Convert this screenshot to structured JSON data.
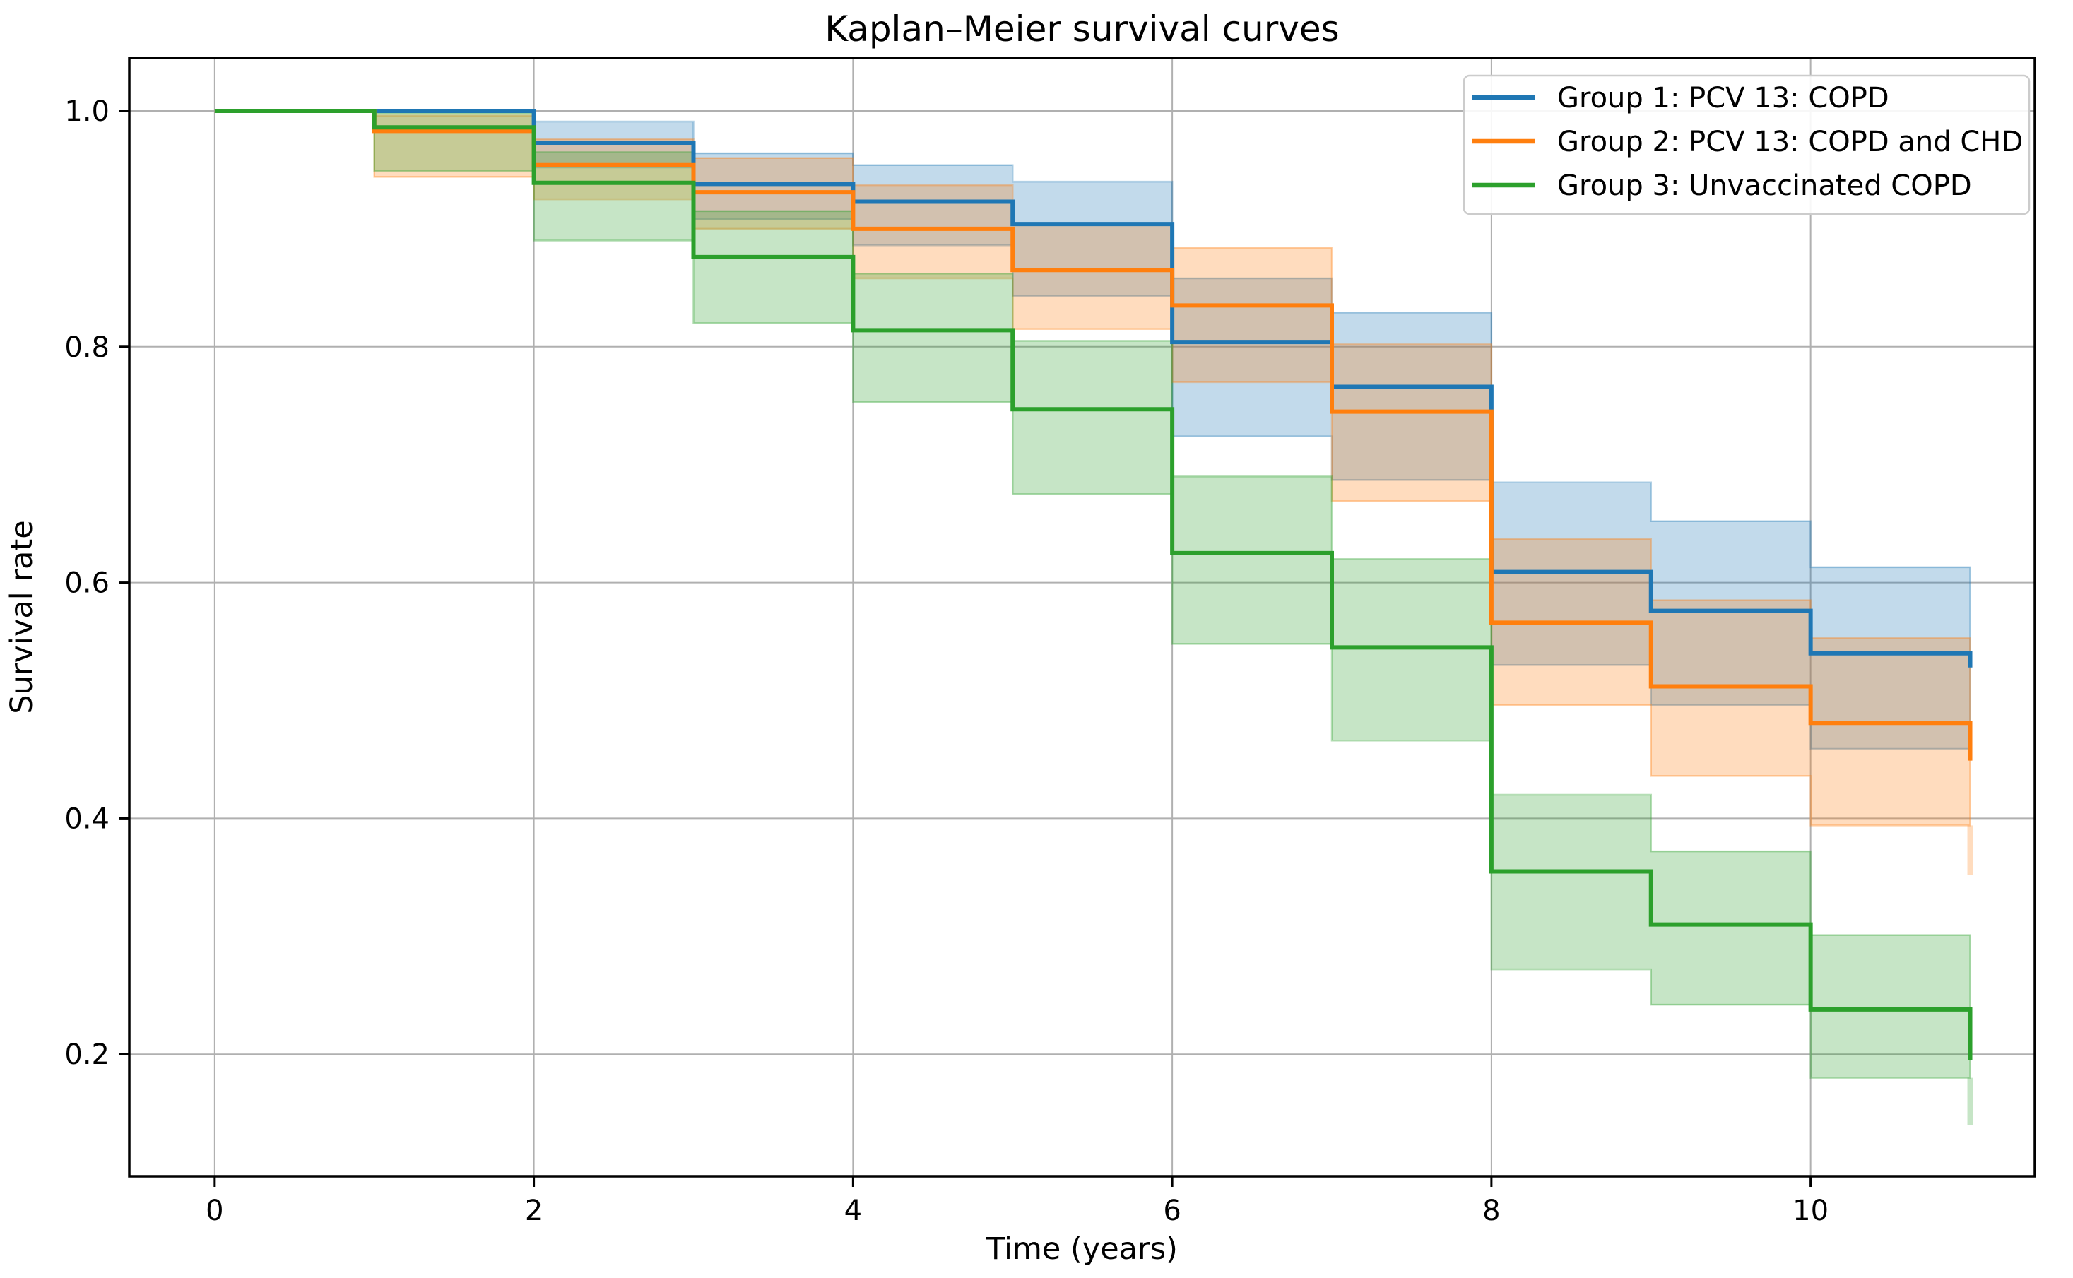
{
  "figure": {
    "title": "Kaplan–Meier survival curves"
  },
  "chart_data": {
    "type": "line",
    "variant": "kaplan_meier_step",
    "title": "Kaplan–Meier survival curves",
    "xlabel": "Time (years)",
    "ylabel": "Survival rate",
    "x_ticks": [
      0,
      2,
      4,
      6,
      8,
      10
    ],
    "y_ticks": [
      0.2,
      0.4,
      0.6,
      0.8,
      1.0
    ],
    "xlim": [
      -0.535,
      11.405
    ],
    "ylim": [
      0.0965,
      1.0449
    ],
    "grid": true,
    "grid_color": "#b0b0b0",
    "axis_color": "#000000",
    "text_color": "#000000",
    "background_color": "#ffffff",
    "legend": {
      "position": "upper right",
      "border_color": "#cccccc",
      "entries": [
        "Group 1: PCV 13: COPD",
        "Group 2: PCV 13: COPD and CHD",
        "Group 3: Unvaccinated COPD"
      ]
    },
    "years": [
      0,
      1,
      2,
      3,
      4,
      5,
      6,
      7,
      8,
      9,
      10,
      11
    ],
    "series": [
      {
        "name": "Group 1: PCV 13: COPD",
        "color": "#1f77b4",
        "band_alpha": 0.27,
        "survival": [
          1.0,
          1.0,
          0.973,
          0.938,
          0.923,
          0.904,
          0.804,
          0.766,
          0.609,
          0.576,
          0.54
        ],
        "final": 0.528,
        "ci_lower": [
          null,
          null,
          0.952,
          0.908,
          0.886,
          0.843,
          0.724,
          0.687,
          0.53,
          0.496,
          0.459
        ],
        "ci_upper": [
          null,
          null,
          0.991,
          0.964,
          0.954,
          0.94,
          0.858,
          0.829,
          0.685,
          0.652,
          0.613
        ],
        "ci_tail_lower": null
      },
      {
        "name": "Group 2: PCV 13: COPD and CHD",
        "color": "#ff7f0e",
        "band_alpha": 0.27,
        "survival": [
          1.0,
          0.983,
          0.954,
          0.931,
          0.9,
          0.865,
          0.835,
          0.745,
          0.566,
          0.512,
          0.481
        ],
        "final": 0.449,
        "ci_lower": [
          null,
          0.944,
          0.925,
          0.9,
          0.858,
          0.815,
          0.77,
          0.669,
          0.496,
          0.436,
          0.394
        ],
        "ci_upper": [
          null,
          0.996,
          0.976,
          0.96,
          0.937,
          0.904,
          0.884,
          0.802,
          0.637,
          0.585,
          0.553
        ],
        "ci_tail_lower": 0.352
      },
      {
        "name": "Group 3: Unvaccinated COPD",
        "color": "#2ca02c",
        "band_alpha": 0.27,
        "survival": [
          1.0,
          0.986,
          0.939,
          0.876,
          0.814,
          0.747,
          0.625,
          0.545,
          0.355,
          0.31,
          0.238
        ],
        "final": 0.195,
        "ci_lower": [
          null,
          0.949,
          0.89,
          0.82,
          0.753,
          0.675,
          0.548,
          0.466,
          0.272,
          0.242,
          0.18
        ],
        "ci_upper": [
          null,
          0.998,
          0.965,
          0.915,
          0.862,
          0.805,
          0.69,
          0.62,
          0.42,
          0.372,
          0.301
        ],
        "ci_tail_lower": 0.14
      }
    ]
  }
}
